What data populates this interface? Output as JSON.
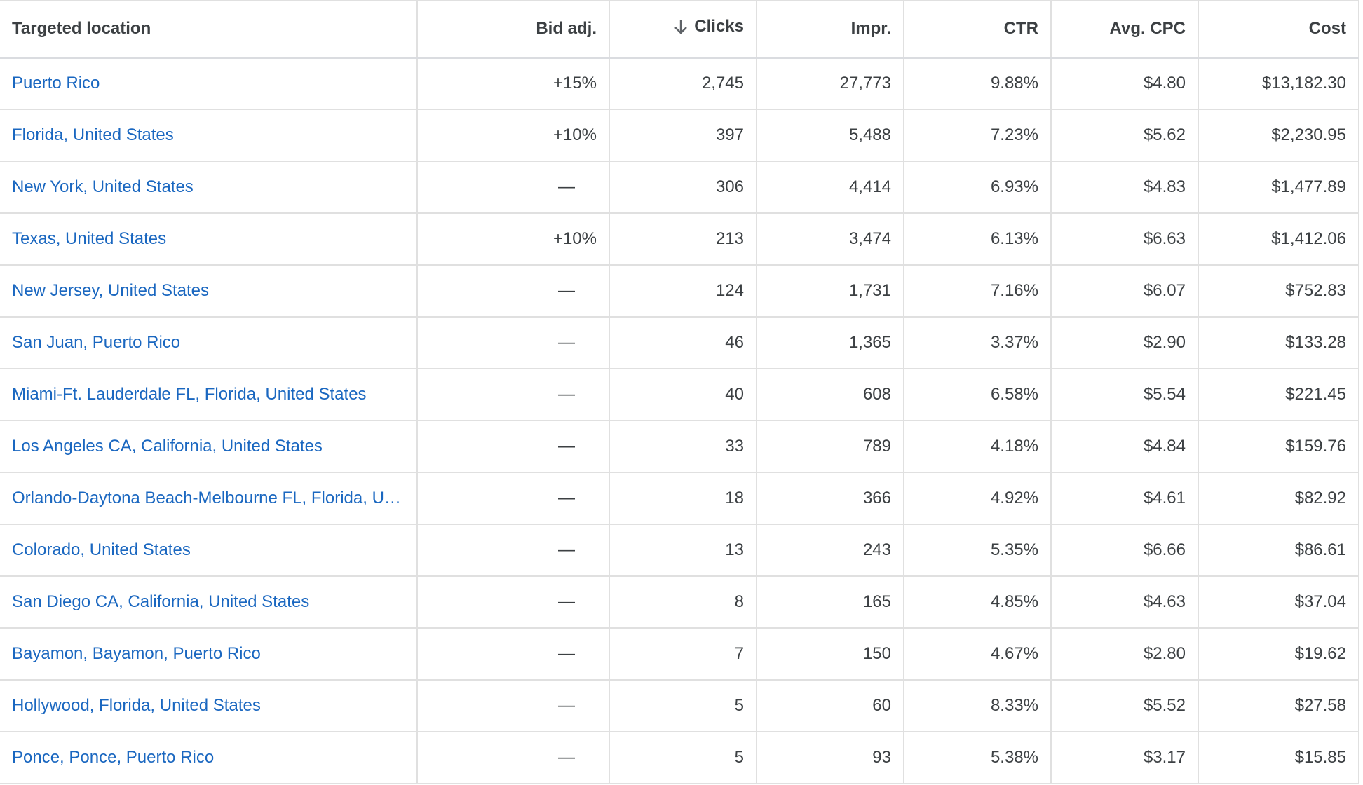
{
  "table": {
    "columns": [
      {
        "key": "location",
        "label": "Targeted location"
      },
      {
        "key": "bid_adj",
        "label": "Bid adj."
      },
      {
        "key": "clicks",
        "label": "Clicks",
        "sort": "descending"
      },
      {
        "key": "impr",
        "label": "Impr."
      },
      {
        "key": "ctr",
        "label": "CTR"
      },
      {
        "key": "avg_cpc",
        "label": "Avg. CPC"
      },
      {
        "key": "cost",
        "label": "Cost"
      }
    ],
    "sort_icon": "arrow-down-icon",
    "rows": [
      {
        "location": "Puerto Rico",
        "bid_adj": "+15%",
        "clicks": "2,745",
        "impr": "27,773",
        "ctr": "9.88%",
        "avg_cpc": "$4.80",
        "cost": "$13,182.30"
      },
      {
        "location": "Florida, United States",
        "bid_adj": "+10%",
        "clicks": "397",
        "impr": "5,488",
        "ctr": "7.23%",
        "avg_cpc": "$5.62",
        "cost": "$2,230.95"
      },
      {
        "location": "New York, United States",
        "bid_adj": "—",
        "clicks": "306",
        "impr": "4,414",
        "ctr": "6.93%",
        "avg_cpc": "$4.83",
        "cost": "$1,477.89"
      },
      {
        "location": "Texas, United States",
        "bid_adj": "+10%",
        "clicks": "213",
        "impr": "3,474",
        "ctr": "6.13%",
        "avg_cpc": "$6.63",
        "cost": "$1,412.06"
      },
      {
        "location": "New Jersey, United States",
        "bid_adj": "—",
        "clicks": "124",
        "impr": "1,731",
        "ctr": "7.16%",
        "avg_cpc": "$6.07",
        "cost": "$752.83"
      },
      {
        "location": "San Juan, Puerto Rico",
        "bid_adj": "—",
        "clicks": "46",
        "impr": "1,365",
        "ctr": "3.37%",
        "avg_cpc": "$2.90",
        "cost": "$133.28"
      },
      {
        "location": "Miami-Ft. Lauderdale FL, Florida, United States",
        "bid_adj": "—",
        "clicks": "40",
        "impr": "608",
        "ctr": "6.58%",
        "avg_cpc": "$5.54",
        "cost": "$221.45"
      },
      {
        "location": "Los Angeles CA, California, United States",
        "bid_adj": "—",
        "clicks": "33",
        "impr": "789",
        "ctr": "4.18%",
        "avg_cpc": "$4.84",
        "cost": "$159.76"
      },
      {
        "location": "Orlando-Daytona Beach-Melbourne FL, Florida, Unit…",
        "bid_adj": "—",
        "clicks": "18",
        "impr": "366",
        "ctr": "4.92%",
        "avg_cpc": "$4.61",
        "cost": "$82.92"
      },
      {
        "location": "Colorado, United States",
        "bid_adj": "—",
        "clicks": "13",
        "impr": "243",
        "ctr": "5.35%",
        "avg_cpc": "$6.66",
        "cost": "$86.61"
      },
      {
        "location": "San Diego CA, California, United States",
        "bid_adj": "—",
        "clicks": "8",
        "impr": "165",
        "ctr": "4.85%",
        "avg_cpc": "$4.63",
        "cost": "$37.04"
      },
      {
        "location": "Bayamon, Bayamon, Puerto Rico",
        "bid_adj": "—",
        "clicks": "7",
        "impr": "150",
        "ctr": "4.67%",
        "avg_cpc": "$2.80",
        "cost": "$19.62"
      },
      {
        "location": "Hollywood, Florida, United States",
        "bid_adj": "—",
        "clicks": "5",
        "impr": "60",
        "ctr": "8.33%",
        "avg_cpc": "$5.52",
        "cost": "$27.58"
      },
      {
        "location": "Ponce, Ponce, Puerto Rico",
        "bid_adj": "—",
        "clicks": "5",
        "impr": "93",
        "ctr": "5.38%",
        "avg_cpc": "$3.17",
        "cost": "$15.85"
      }
    ]
  },
  "colors": {
    "link": "#1a67c0",
    "text": "#3c4043",
    "grid": "#e0e0e0"
  }
}
